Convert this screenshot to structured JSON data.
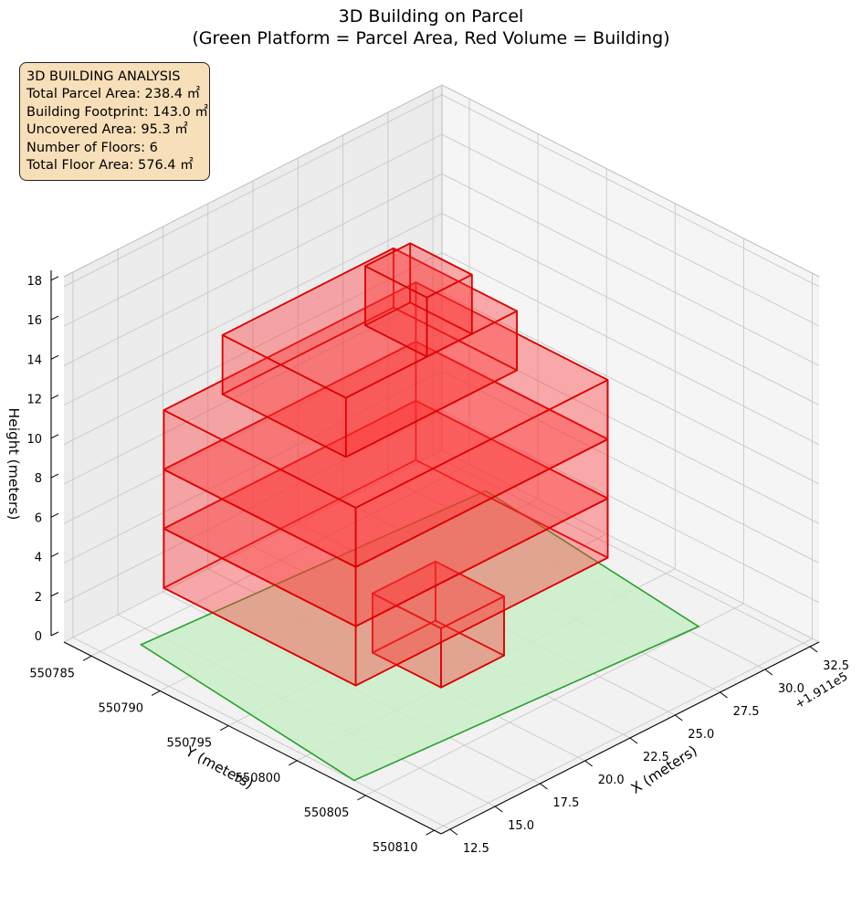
{
  "title": {
    "line1": "3D Building on Parcel",
    "line2": "(Green Platform = Parcel Area, Red Volume = Building)"
  },
  "info": {
    "heading": "3D BUILDING ANALYSIS",
    "lines": [
      "Total Parcel Area: 238.4 ㎡",
      "Building Footprint: 143.0 ㎡",
      "Uncovered Area: 95.3 ㎡",
      "Number of Floors: 6",
      "Total Floor Area: 576.4 ㎡"
    ]
  },
  "colors": {
    "building_fill": "#ff3030",
    "building_edge": "#dd0000",
    "parcel_fill": "#c9efc9",
    "parcel_edge": "#2ca02c",
    "infobox_bg": "#f7dfb9"
  },
  "chart_data": {
    "type": "3d-volume",
    "grid": true,
    "xlabel": "X (meters)",
    "ylabel": "Y (meters)",
    "zlabel": "Height (meters)",
    "x_offset_label": "+1.911e5",
    "x_ticks": [
      "12.5",
      "15.0",
      "17.5",
      "20.0",
      "22.5",
      "25.0",
      "27.5",
      "30.0",
      "32.5"
    ],
    "y_ticks": [
      "550785",
      "550790",
      "550795",
      "550800",
      "550805",
      "550810"
    ],
    "z_ticks": [
      "0",
      "2",
      "4",
      "6",
      "8",
      "10",
      "12",
      "14",
      "16",
      "18"
    ],
    "xlim": [
      12.0,
      33.0
    ],
    "ylim": [
      550783.0,
      550810.5
    ],
    "zlim": [
      0,
      18.5
    ],
    "parcel": {
      "corners": [
        [
          14.0,
          550786.0
        ],
        [
          32.0,
          550787.5
        ],
        [
          30.5,
          550805.0
        ],
        [
          12.5,
          550803.5
        ]
      ],
      "area_m2": 238.4
    },
    "building": {
      "floors": 6,
      "floor_height_m": 3.0,
      "footprint_m2": 143.0,
      "total_floor_area_m2": 576.4,
      "boxes": [
        {
          "x": [
            20.0,
            23.5
          ],
          "y": [
            550795.0,
            550800.0
          ],
          "z": [
            0.0,
            3.0
          ]
        },
        {
          "x": [
            14.5,
            28.5
          ],
          "y": [
            550787.0,
            550801.0
          ],
          "z": [
            3.0,
            6.0
          ]
        },
        {
          "x": [
            14.5,
            28.5
          ],
          "y": [
            550787.0,
            550801.0
          ],
          "z": [
            6.0,
            9.0
          ]
        },
        {
          "x": [
            14.5,
            28.5
          ],
          "y": [
            550787.0,
            550801.0
          ],
          "z": [
            9.0,
            12.0
          ]
        },
        {
          "x": [
            17.0,
            26.5
          ],
          "y": [
            550788.0,
            550797.0
          ],
          "z": [
            12.0,
            15.0
          ]
        },
        {
          "x": [
            21.5,
            24.0
          ],
          "y": [
            550792.5,
            550797.0
          ],
          "z": [
            15.0,
            18.0
          ]
        }
      ]
    }
  }
}
